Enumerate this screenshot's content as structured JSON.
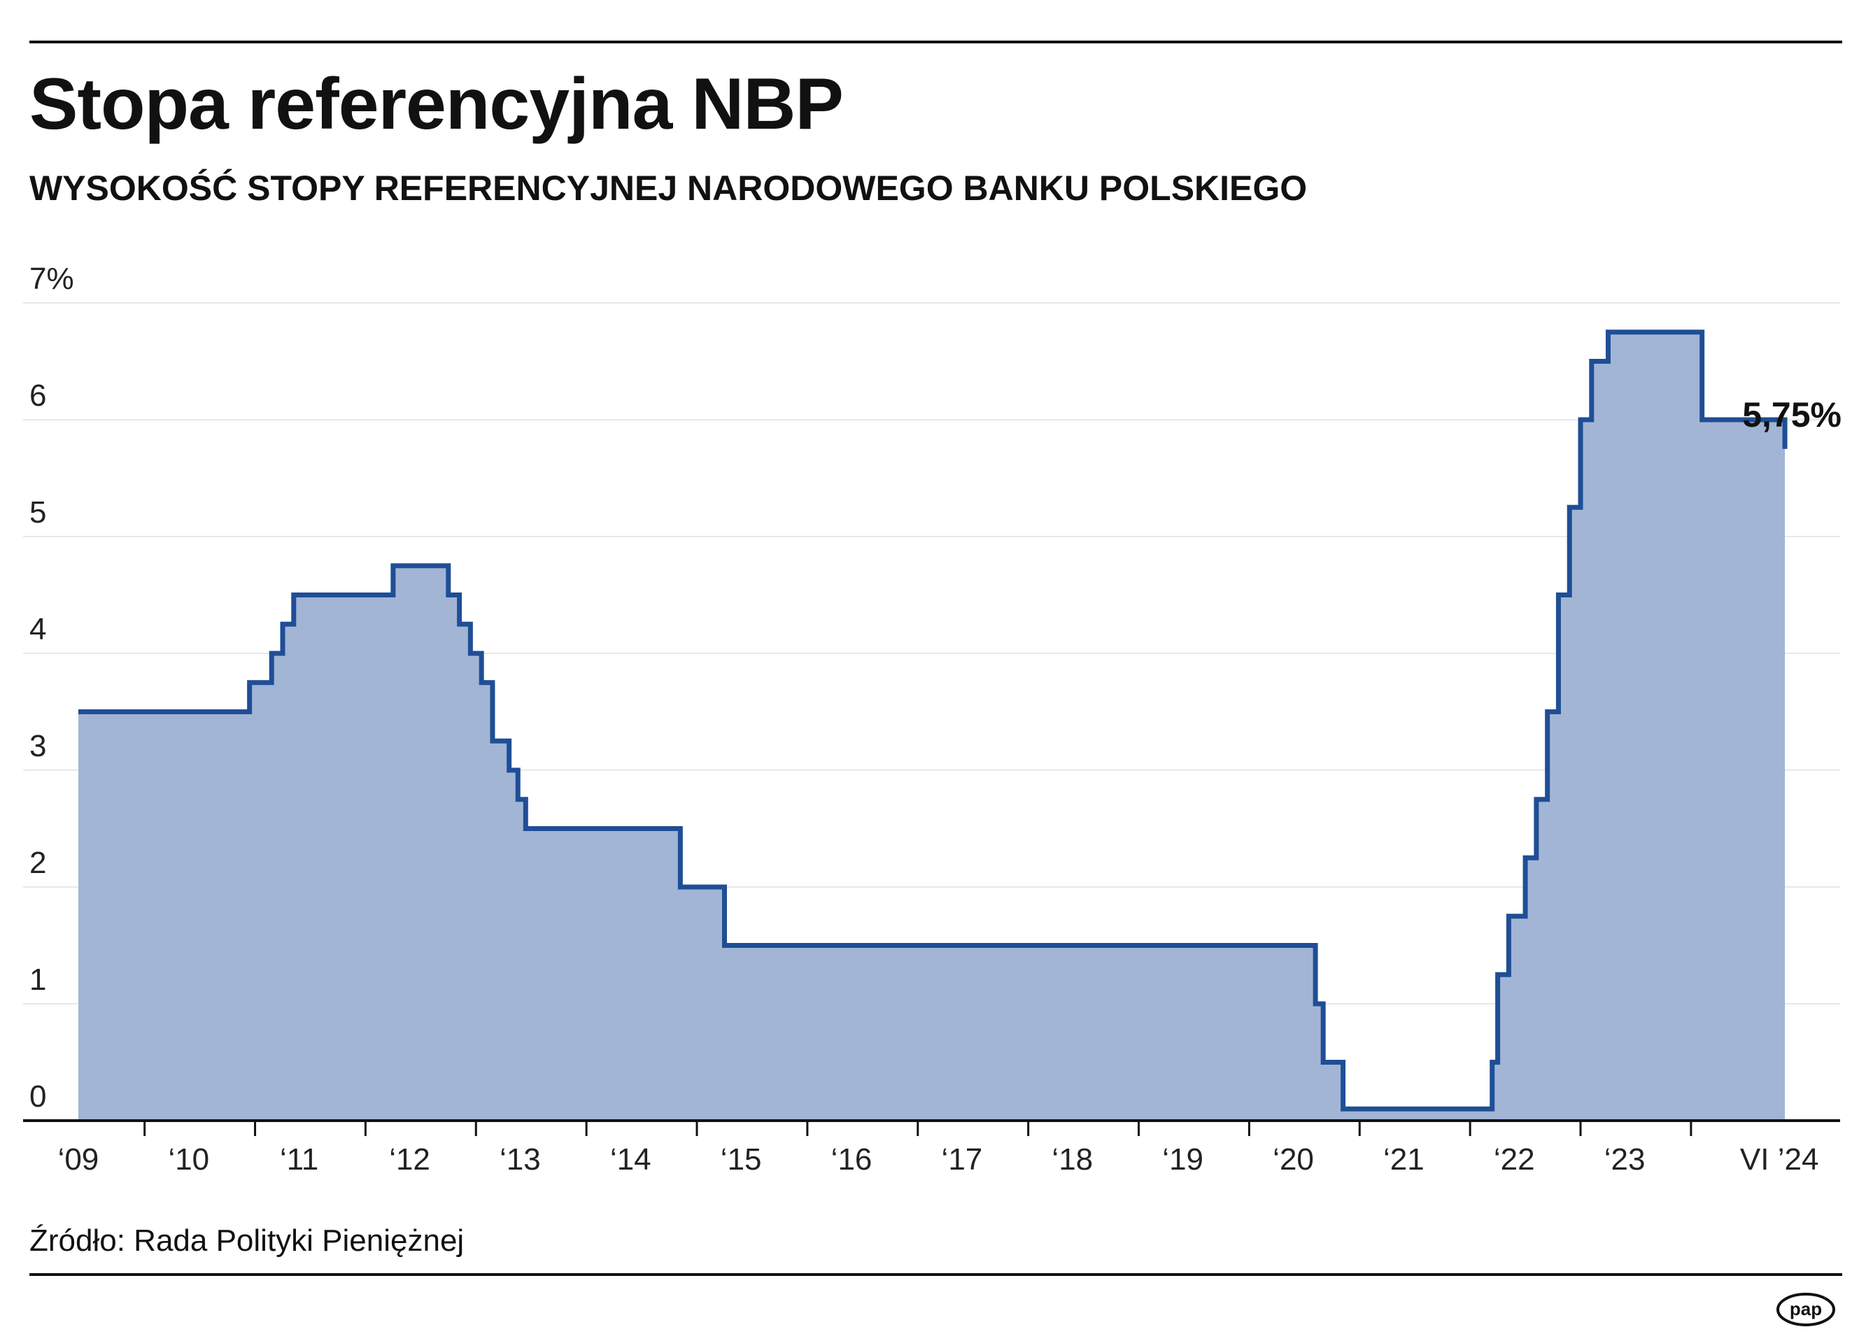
{
  "header": {
    "title": "Stopa referencyjna NBP",
    "subtitle": "WYSOKOŚĆ STOPY REFERENCYJNEJ NARODOWEGO BANKU POLSKIEGO"
  },
  "footer": {
    "source": "Źródło: Rada Polityki Pieniężnej",
    "logo_text": "pap"
  },
  "colors": {
    "line": "#1f4e96",
    "fill": "#a2b5d5",
    "grid": "#e8e8e8",
    "text": "#111111"
  },
  "chart_data": {
    "type": "area",
    "title": "Stopa referencyjna NBP",
    "subtitle": "WYSOKOŚĆ STOPY REFERENCYJNEJ NARODOWEGO BANKU POLSKIEGO",
    "step": true,
    "ylim": [
      0,
      7
    ],
    "xlim": [
      2008.5,
      2024.95
    ],
    "y_ticks": [
      {
        "value": 0,
        "label": "0"
      },
      {
        "value": 1,
        "label": "1"
      },
      {
        "value": 2,
        "label": "2"
      },
      {
        "value": 3,
        "label": "3"
      },
      {
        "value": 4,
        "label": "4"
      },
      {
        "value": 5,
        "label": "5"
      },
      {
        "value": 6,
        "label": "6"
      },
      {
        "value": 7,
        "label": "7%"
      }
    ],
    "x_tick_labels": [
      "‘09",
      "‘10",
      "‘11",
      "‘12",
      "‘13",
      "‘14",
      "‘15",
      "‘16",
      "‘17",
      "‘18",
      "‘19",
      "‘20",
      "‘21",
      "‘22",
      "‘23",
      "VI ’24"
    ],
    "grid": true,
    "end_label": "5,75%",
    "x": [
      2009.0,
      2010.55,
      2010.75,
      2010.85,
      2010.95,
      2011.85,
      2012.35,
      2012.45,
      2012.55,
      2012.65,
      2012.75,
      2012.9,
      2012.98,
      2013.05,
      2014.45,
      2014.85,
      2020.2,
      2020.27,
      2020.45,
      2021.8,
      2021.85,
      2021.95,
      2022.1,
      2022.2,
      2022.3,
      2022.4,
      2022.5,
      2022.6,
      2022.7,
      2022.85,
      2023.07,
      2023.7,
      2024.45
    ],
    "series": [
      {
        "values": [
          3.5,
          3.75,
          4.0,
          4.25,
          4.5,
          4.75,
          4.5,
          4.25,
          4.0,
          3.75,
          3.25,
          3.0,
          2.75,
          2.5,
          2.0,
          1.5,
          1.0,
          0.5,
          0.1,
          0.5,
          1.25,
          1.75,
          2.25,
          2.75,
          3.5,
          4.5,
          5.25,
          6.0,
          6.5,
          6.75,
          6.75,
          6.0,
          5.75
        ]
      }
    ]
  }
}
